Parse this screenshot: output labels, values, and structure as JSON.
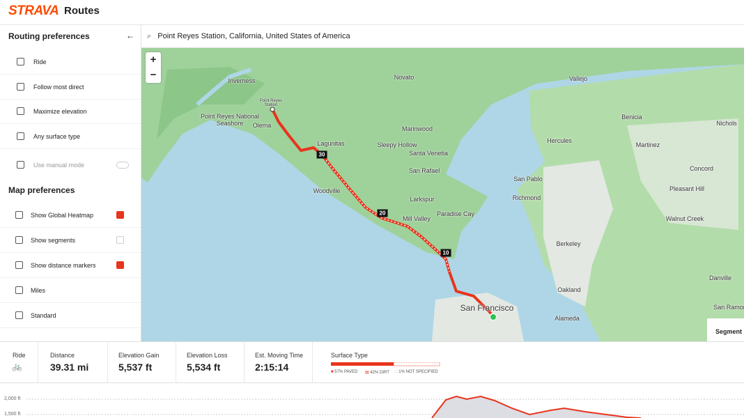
{
  "header": {
    "logo": "STRAVA",
    "title": "Routes"
  },
  "sidebar": {
    "routing_title": "Routing preferences",
    "routing_options": [
      "Ride",
      "Follow most direct",
      "Maximize elevation",
      "Any surface type",
      "Use manual mode"
    ],
    "map_title": "Map preferences",
    "map_options": [
      {
        "label": "Show Global Heatmap",
        "checked": true
      },
      {
        "label": "Show segments",
        "checked": false
      },
      {
        "label": "Show distance markers",
        "checked": true
      },
      {
        "label": "Miles"
      },
      {
        "label": "Standard"
      }
    ]
  },
  "search": {
    "query": "Point Reyes Station, California, United States of America"
  },
  "map": {
    "labels": [
      "Inverness",
      "Point Reyes Station",
      "Point Reyes National Seashore",
      "Olema",
      "Novato",
      "Vallejo",
      "Lagunitas",
      "Sleepy Hollow",
      "Santa Venetia",
      "Marinwood",
      "San Rafael",
      "Woodville",
      "Larkspur",
      "Paradise Cay",
      "Mill Valley",
      "San Francisco",
      "Berkeley",
      "Oakland",
      "Alameda",
      "Richmond",
      "San Pablo",
      "Hercules",
      "Benicia",
      "Martinez",
      "Concord",
      "Pleasant Hill",
      "Walnut Creek",
      "Danville",
      "San Ramon",
      "Nichols"
    ],
    "distance_markers": [
      "30",
      "20",
      "10"
    ],
    "segments_tab": "Segment"
  },
  "stats": {
    "activity": "Ride",
    "items": [
      {
        "label": "Distance",
        "value": "39.31 mi"
      },
      {
        "label": "Elevation Gain",
        "value": "5,537 ft"
      },
      {
        "label": "Elevation Loss",
        "value": "5,534 ft"
      },
      {
        "label": "Est. Moving Time",
        "value": "2:15:14"
      }
    ]
  },
  "surface": {
    "title": "Surface Type",
    "legend": [
      "57% PAVED",
      "42% DIRT",
      "1% NOT SPECIFIED"
    ]
  },
  "elevation": {
    "ticks": [
      "2,000 ft",
      "1,500 ft"
    ]
  }
}
